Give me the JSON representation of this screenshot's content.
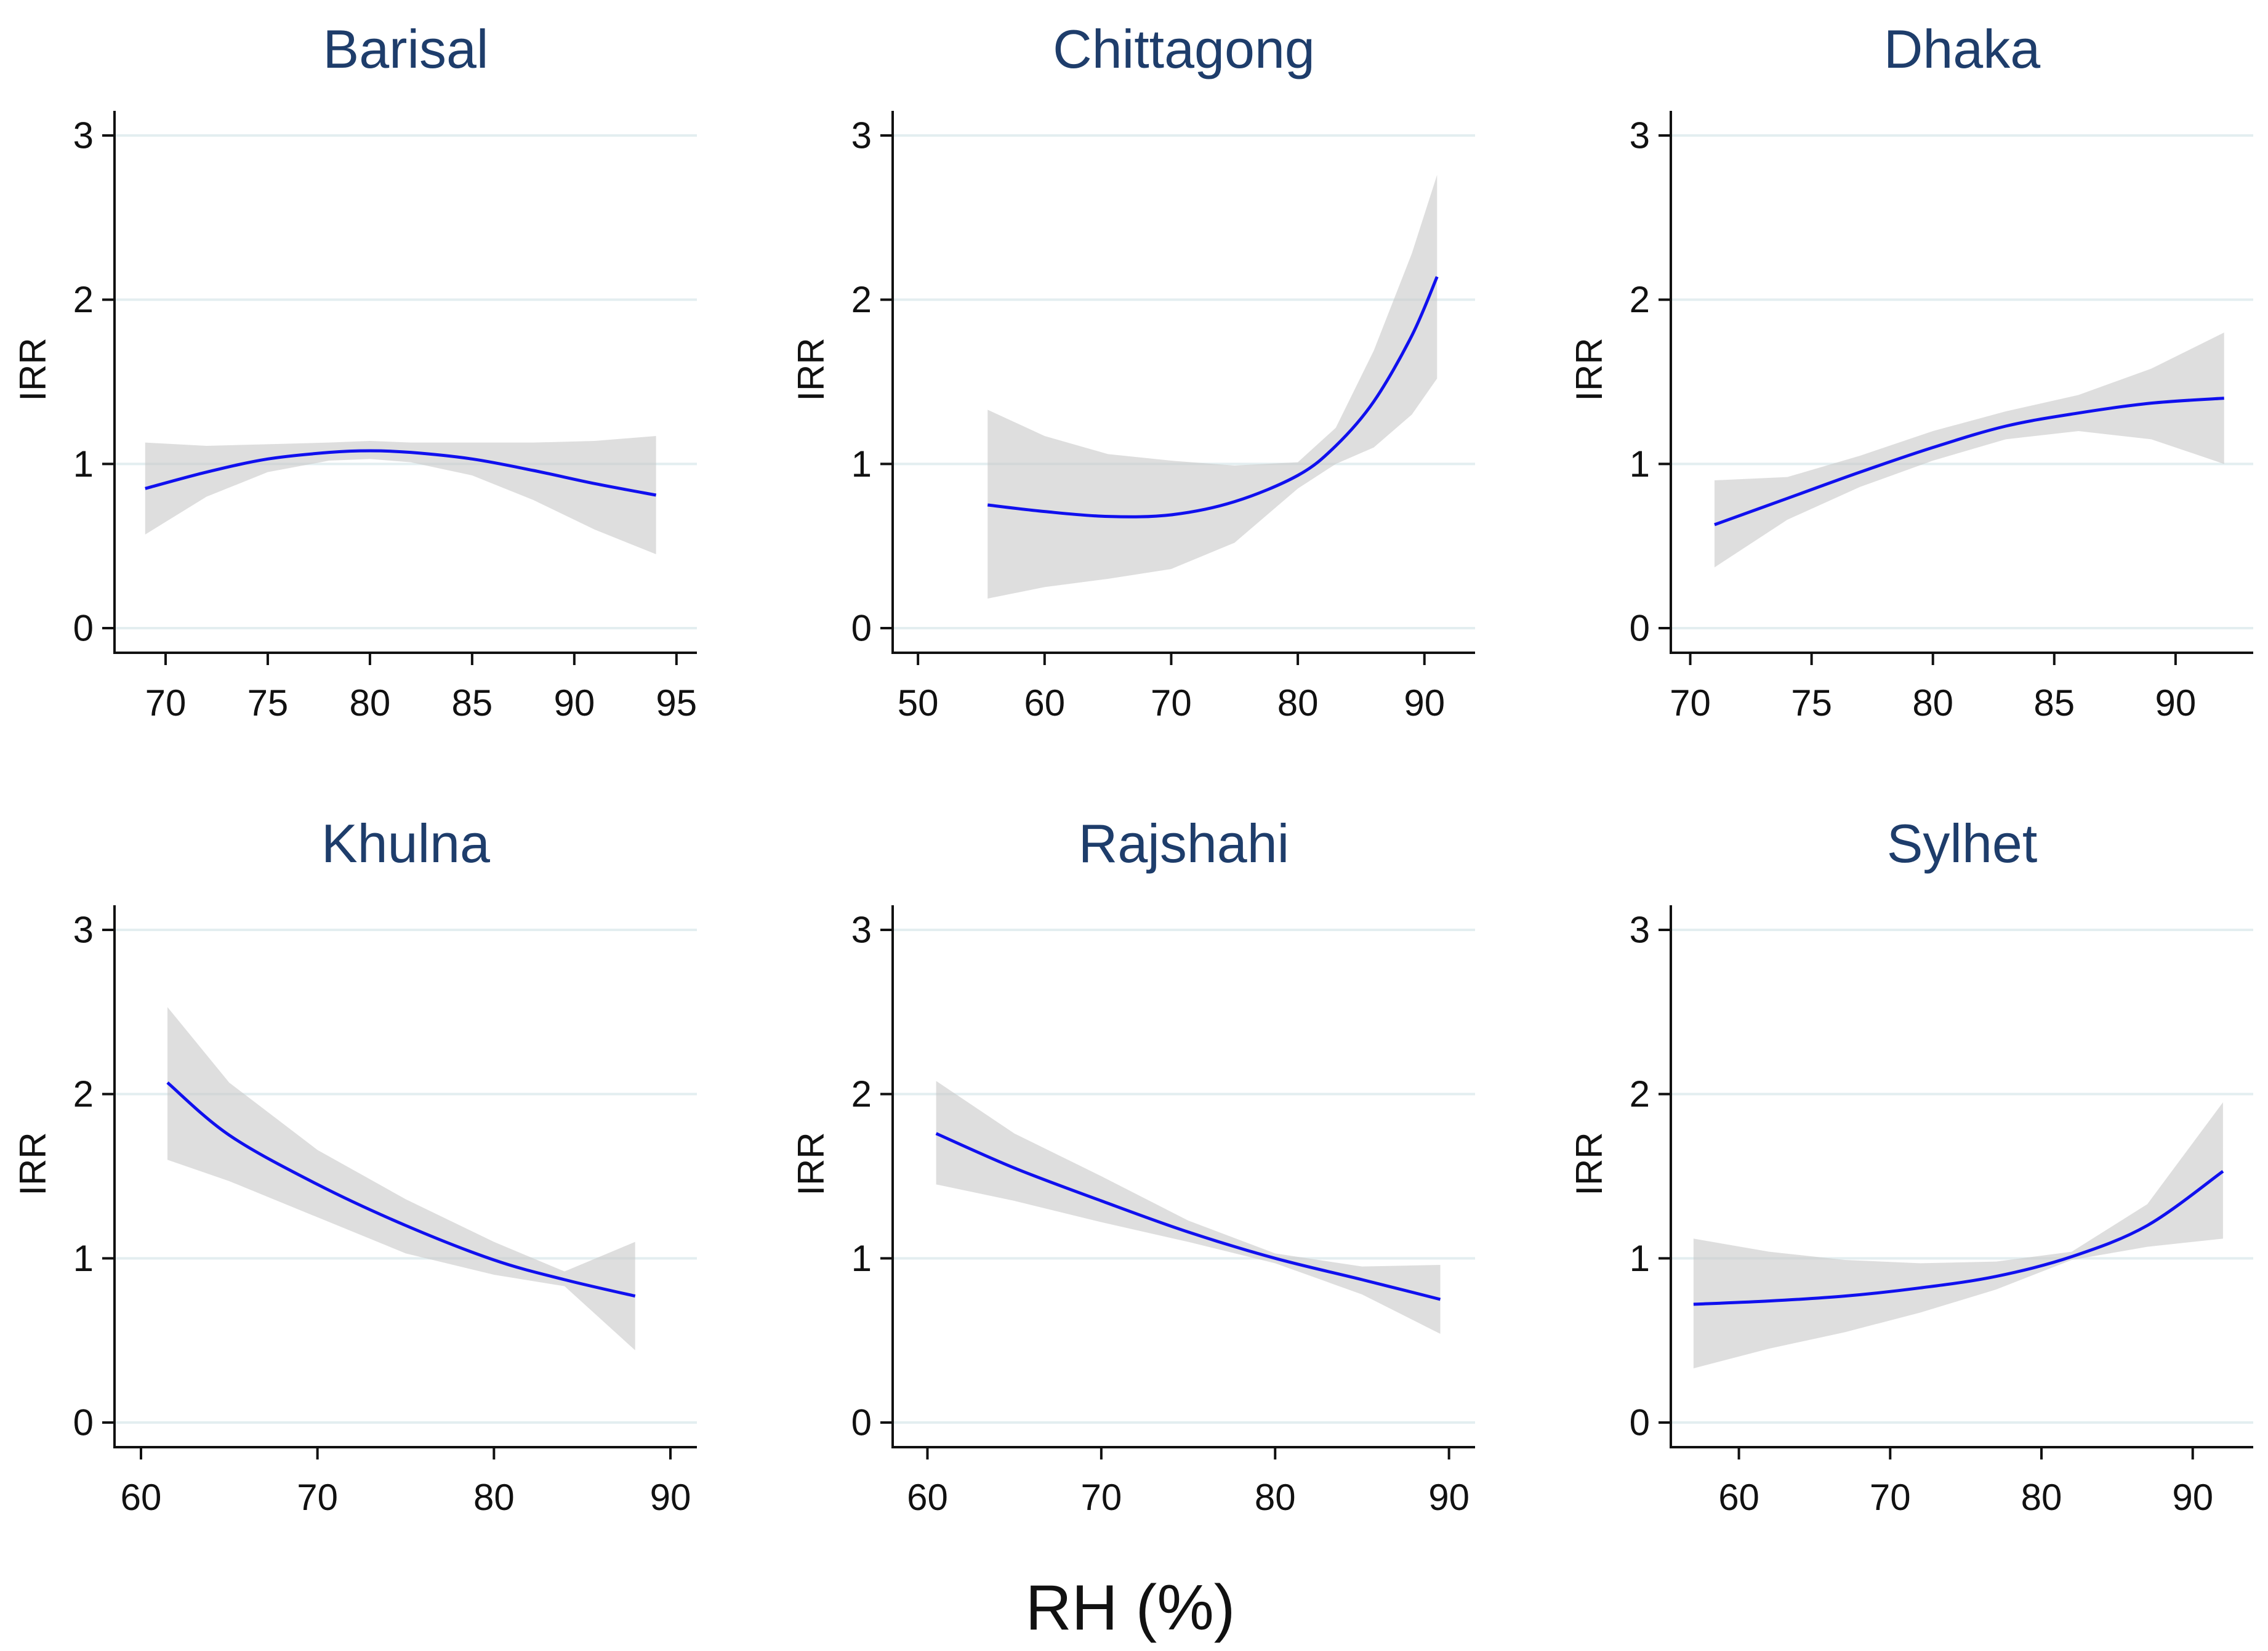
{
  "figure": {
    "xlabel": "RH (%)",
    "colors": {
      "title": "#1e3d6b",
      "line": "#1010ee",
      "band": "#c8c8c8",
      "grid": "#e3eef0",
      "axis": "#111111"
    }
  },
  "chart_data": [
    {
      "type": "line",
      "title": "Barisal",
      "ylabel": "IRR",
      "xlabel": "",
      "xlim": [
        67.5,
        96
      ],
      "ylim": [
        -0.15,
        3.15
      ],
      "xticks": [
        70,
        75,
        80,
        85,
        90,
        95
      ],
      "xtick_labels": [
        "70",
        "75",
        "80",
        "85",
        "90",
        "95"
      ],
      "yticks": [
        0,
        1,
        2,
        3
      ],
      "ytick_labels": [
        "0",
        "1",
        "2",
        "3"
      ],
      "grid": true,
      "series": [
        {
          "name": "IRR",
          "x": [
            69,
            72,
            75,
            78,
            80,
            82,
            85,
            88,
            91,
            94
          ],
          "values": [
            0.85,
            0.95,
            1.03,
            1.07,
            1.08,
            1.07,
            1.03,
            0.96,
            0.88,
            0.81
          ],
          "ci_lower": [
            0.57,
            0.8,
            0.95,
            1.02,
            1.03,
            1.01,
            0.93,
            0.78,
            0.6,
            0.45
          ],
          "ci_upper": [
            1.13,
            1.11,
            1.12,
            1.13,
            1.14,
            1.13,
            1.13,
            1.13,
            1.14,
            1.17
          ]
        }
      ]
    },
    {
      "type": "line",
      "title": "Chittagong",
      "ylabel": "IRR",
      "xlabel": "",
      "xlim": [
        48,
        94
      ],
      "ylim": [
        -0.15,
        3.15
      ],
      "xticks": [
        50,
        60,
        70,
        80,
        90
      ],
      "xtick_labels": [
        "50",
        "60",
        "70",
        "80",
        "90"
      ],
      "yticks": [
        0,
        1,
        2,
        3
      ],
      "ytick_labels": [
        "0",
        "1",
        "2",
        "3"
      ],
      "grid": true,
      "series": [
        {
          "name": "IRR",
          "x": [
            55.5,
            60,
            65,
            70,
            75,
            80,
            83,
            86,
            89,
            91
          ],
          "values": [
            0.75,
            0.71,
            0.68,
            0.69,
            0.77,
            0.93,
            1.11,
            1.38,
            1.78,
            2.14
          ],
          "ci_lower": [
            0.18,
            0.25,
            0.3,
            0.36,
            0.52,
            0.85,
            1.0,
            1.1,
            1.3,
            1.52
          ],
          "ci_upper": [
            1.33,
            1.17,
            1.06,
            1.02,
            0.99,
            1.01,
            1.22,
            1.69,
            2.28,
            2.76
          ]
        }
      ]
    },
    {
      "type": "line",
      "title": "Dhaka",
      "ylabel": "IRR",
      "xlabel": "",
      "xlim": [
        69.2,
        93.2
      ],
      "ylim": [
        -0.15,
        3.15
      ],
      "xticks": [
        70,
        75,
        80,
        85,
        90
      ],
      "xtick_labels": [
        "70",
        "75",
        "80",
        "85",
        "90"
      ],
      "yticks": [
        0,
        1,
        2,
        3
      ],
      "ytick_labels": [
        "0",
        "1",
        "2",
        "3"
      ],
      "grid": true,
      "series": [
        {
          "name": "IRR",
          "x": [
            71,
            74,
            77,
            80,
            83,
            86,
            89,
            92
          ],
          "values": [
            0.63,
            0.79,
            0.95,
            1.1,
            1.23,
            1.31,
            1.37,
            1.4
          ],
          "ci_lower": [
            0.37,
            0.66,
            0.86,
            1.02,
            1.15,
            1.2,
            1.15,
            1.0
          ],
          "ci_upper": [
            0.9,
            0.92,
            1.05,
            1.2,
            1.32,
            1.42,
            1.58,
            1.8
          ]
        }
      ]
    },
    {
      "type": "line",
      "title": "Khulna",
      "ylabel": "IRR",
      "xlabel": "",
      "xlim": [
        58.5,
        91.5
      ],
      "ylim": [
        -0.15,
        3.15
      ],
      "xticks": [
        60,
        70,
        80,
        90
      ],
      "xtick_labels": [
        "60",
        "70",
        "80",
        "90"
      ],
      "yticks": [
        0,
        1,
        2,
        3
      ],
      "ytick_labels": [
        "0",
        "1",
        "2",
        "3"
      ],
      "grid": true,
      "series": [
        {
          "name": "IRR",
          "x": [
            61.5,
            65,
            70,
            75,
            80,
            84,
            88
          ],
          "values": [
            2.07,
            1.75,
            1.45,
            1.2,
            0.99,
            0.87,
            0.77
          ],
          "ci_lower": [
            1.6,
            1.47,
            1.25,
            1.03,
            0.9,
            0.83,
            0.44
          ],
          "ci_upper": [
            2.53,
            2.07,
            1.66,
            1.36,
            1.1,
            0.92,
            1.1
          ]
        }
      ]
    },
    {
      "type": "line",
      "title": "Rajshahi",
      "ylabel": "IRR",
      "xlabel": "",
      "xlim": [
        58,
        91.5
      ],
      "ylim": [
        -0.15,
        3.15
      ],
      "xticks": [
        60,
        70,
        80,
        90
      ],
      "xtick_labels": [
        "60",
        "70",
        "80",
        "90"
      ],
      "yticks": [
        0,
        1,
        2,
        3
      ],
      "ytick_labels": [
        "0",
        "1",
        "2",
        "3"
      ],
      "grid": true,
      "series": [
        {
          "name": "IRR",
          "x": [
            60.5,
            65,
            70,
            75,
            80,
            85,
            89.5
          ],
          "values": [
            1.76,
            1.55,
            1.35,
            1.16,
            1.0,
            0.87,
            0.75
          ],
          "ci_lower": [
            1.45,
            1.35,
            1.22,
            1.1,
            0.97,
            0.78,
            0.54
          ],
          "ci_upper": [
            2.08,
            1.76,
            1.5,
            1.23,
            1.03,
            0.95,
            0.96
          ]
        }
      ]
    },
    {
      "type": "line",
      "title": "Sylhet",
      "ylabel": "IRR",
      "xlabel": "",
      "xlim": [
        55.5,
        94
      ],
      "ylim": [
        -0.15,
        3.15
      ],
      "xticks": [
        60,
        70,
        80,
        90
      ],
      "xtick_labels": [
        "60",
        "70",
        "80",
        "90"
      ],
      "yticks": [
        0,
        1,
        2,
        3
      ],
      "ytick_labels": [
        "0",
        "1",
        "2",
        "3"
      ],
      "grid": true,
      "series": [
        {
          "name": "IRR",
          "x": [
            57,
            62,
            67,
            72,
            77,
            82,
            87,
            92
          ],
          "values": [
            0.72,
            0.74,
            0.77,
            0.82,
            0.89,
            1.01,
            1.2,
            1.53
          ],
          "ci_lower": [
            0.33,
            0.45,
            0.55,
            0.67,
            0.81,
            0.99,
            1.07,
            1.12
          ],
          "ci_upper": [
            1.12,
            1.04,
            0.99,
            0.97,
            0.98,
            1.04,
            1.33,
            1.95
          ]
        }
      ]
    }
  ]
}
